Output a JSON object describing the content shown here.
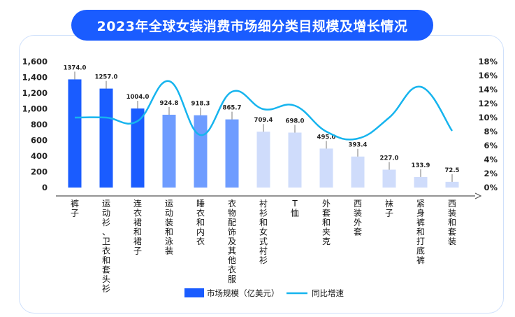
{
  "title": "2023年全球女装消费市场细分类目规模及增长情况",
  "chart_data": {
    "type": "bar",
    "categories": [
      "裤子",
      "运动衫、卫衣和套头衫",
      "连衣裙和裙子",
      "运动装和泳装",
      "睡衣和内衣",
      "衣物配饰及其他衣服",
      "衬衫和女式衬衫",
      "T恤",
      "外套和夹克",
      "西装外套",
      "袜子",
      "紧身裤和打底裤",
      "西装和套装"
    ],
    "series": [
      {
        "name": "市场规模（亿美元）",
        "type": "bar",
        "axis": "left",
        "values": [
          1374.0,
          1257.0,
          1004.0,
          924.8,
          918.3,
          865.7,
          709.4,
          698.0,
          495.0,
          393.4,
          227.0,
          133.9,
          72.5
        ],
        "labels": [
          "1374.0",
          "1257.0",
          "1004.0",
          "924.8",
          "918.3",
          "865.7",
          "709.4",
          "698.0",
          "495.0",
          "393.4",
          "227.0",
          "133.9",
          "72.5"
        ],
        "colors": [
          "#1a5cff",
          "#1a5cff",
          "#1a5cff",
          "#6e9cff",
          "#6e9cff",
          "#6e9cff",
          "#cfdcfb",
          "#cfdcfb",
          "#cfdcfb",
          "#cfdcfb",
          "#cfdcfb",
          "#cfdcfb",
          "#cfdcfb"
        ]
      },
      {
        "name": "同比增速",
        "type": "line",
        "axis": "right",
        "color": "#16b4ee",
        "values": [
          10.0,
          10.0,
          9.5,
          15.2,
          7.5,
          13.7,
          11.2,
          11.7,
          8.0,
          7.0,
          10.0,
          14.4,
          8.1
        ]
      }
    ],
    "y_left": {
      "min": 0,
      "max": 1600,
      "ticks": [
        "0",
        "200",
        "400",
        "600",
        "800",
        "1,000",
        "1,200",
        "1,400",
        "1,600"
      ]
    },
    "y_right": {
      "min": 0,
      "max": 18,
      "ticks": [
        "0%",
        "2%",
        "4%",
        "6%",
        "8%",
        "10%",
        "12%",
        "14%",
        "16%",
        "18%"
      ]
    },
    "legend_position": "bottom-center",
    "grid": false
  }
}
